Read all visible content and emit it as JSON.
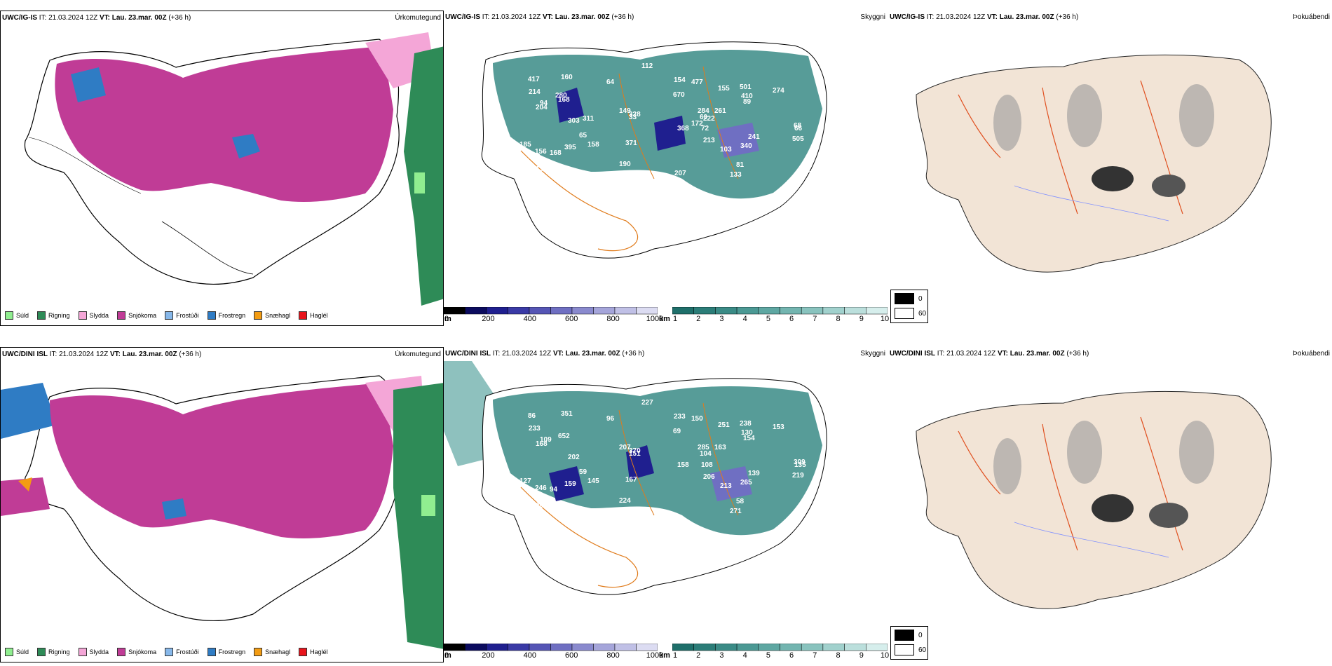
{
  "rows": [
    {
      "model": "UWC/IG-IS",
      "it_label": "IT:",
      "it_value": "21.03.2024 12Z",
      "vt_label": "VT:",
      "vt_value": "Lau. 23.mar. 00Z",
      "lead": "(+36 h)"
    },
    {
      "model": "UWC/DINI ISL",
      "it_label": "IT:",
      "it_value": "21.03.2024 12Z",
      "vt_label": "VT:",
      "vt_value": "Lau. 23.mar. 00Z",
      "lead": "(+36 h)"
    }
  ],
  "panel_names": {
    "precip": "Úrkomutegund",
    "cloud": "Skyggni",
    "fog": "Þokuábendi"
  },
  "precip_legend": [
    {
      "label": "Súld",
      "color": "#90ee90"
    },
    {
      "label": "Rigning",
      "color": "#2e8b57"
    },
    {
      "label": "Slydda",
      "color": "#f4a6d7"
    },
    {
      "label": "Snjókoma",
      "color": "#c03c96"
    },
    {
      "label": "Frostúði",
      "color": "#87b8ea"
    },
    {
      "label": "Frostregn",
      "color": "#2f7cc4"
    },
    {
      "label": "Snæhagl",
      "color": "#f39c12"
    },
    {
      "label": "Haglél",
      "color": "#e8141c"
    }
  ],
  "cloudbase_bar": {
    "unit": "m",
    "ticks": [
      "0",
      "200",
      "400",
      "600",
      "800",
      "1000"
    ],
    "colors": [
      "#000000",
      "#0b0b5e",
      "#1f1f8f",
      "#3a3aa6",
      "#5555b5",
      "#6f6fc2",
      "#8a8ace",
      "#a5a5da",
      "#c0c0e6",
      "#dcdcf2"
    ]
  },
  "visibility_bar": {
    "unit": "km",
    "ticks": [
      "1",
      "2",
      "3",
      "4",
      "5",
      "6",
      "7",
      "8",
      "9",
      "10"
    ],
    "colors": [
      "#1e6f6a",
      "#2b7d78",
      "#3a8b86",
      "#4b9994",
      "#5ea7a2",
      "#73b5b0",
      "#89c3be",
      "#a1d1cd",
      "#bbdfdc",
      "#d6eeec"
    ]
  },
  "fog_legend": [
    {
      "label": "0",
      "color": "#000000"
    },
    {
      "label": "60",
      "color": "#ffffff"
    }
  ],
  "cloud_labels_top": [
    "248",
    "185",
    "477",
    "168",
    "261",
    "64",
    "670",
    "274",
    "149",
    "155",
    "66",
    "417",
    "68",
    "65",
    "81",
    "60",
    "253",
    "340",
    "204",
    "89",
    "112",
    "213",
    "103",
    "94",
    "72",
    "160",
    "131",
    "328",
    "109",
    "133",
    "158",
    "156",
    "190",
    "368",
    "303",
    "260",
    "284",
    "395",
    "505",
    "241",
    "371",
    "154",
    "33",
    "168",
    "148",
    "410",
    "501",
    "214",
    "311",
    "172",
    "222",
    "280",
    "102",
    "207"
  ],
  "cloud_labels_bottom": [
    "226",
    "127",
    "150",
    "652",
    "163",
    "96",
    "69",
    "153",
    "207",
    "251",
    "135",
    "86",
    "309",
    "59",
    "58",
    "104",
    "80",
    "265",
    "168",
    "154",
    "227",
    "206",
    "213",
    "109",
    "108",
    "351",
    "200",
    "370",
    "250",
    "271",
    "145",
    "246",
    "224",
    "158",
    "202",
    "265",
    "285",
    "159",
    "219",
    "139",
    "167",
    "233",
    "151",
    "94",
    "129",
    "130",
    "238",
    "233"
  ]
}
